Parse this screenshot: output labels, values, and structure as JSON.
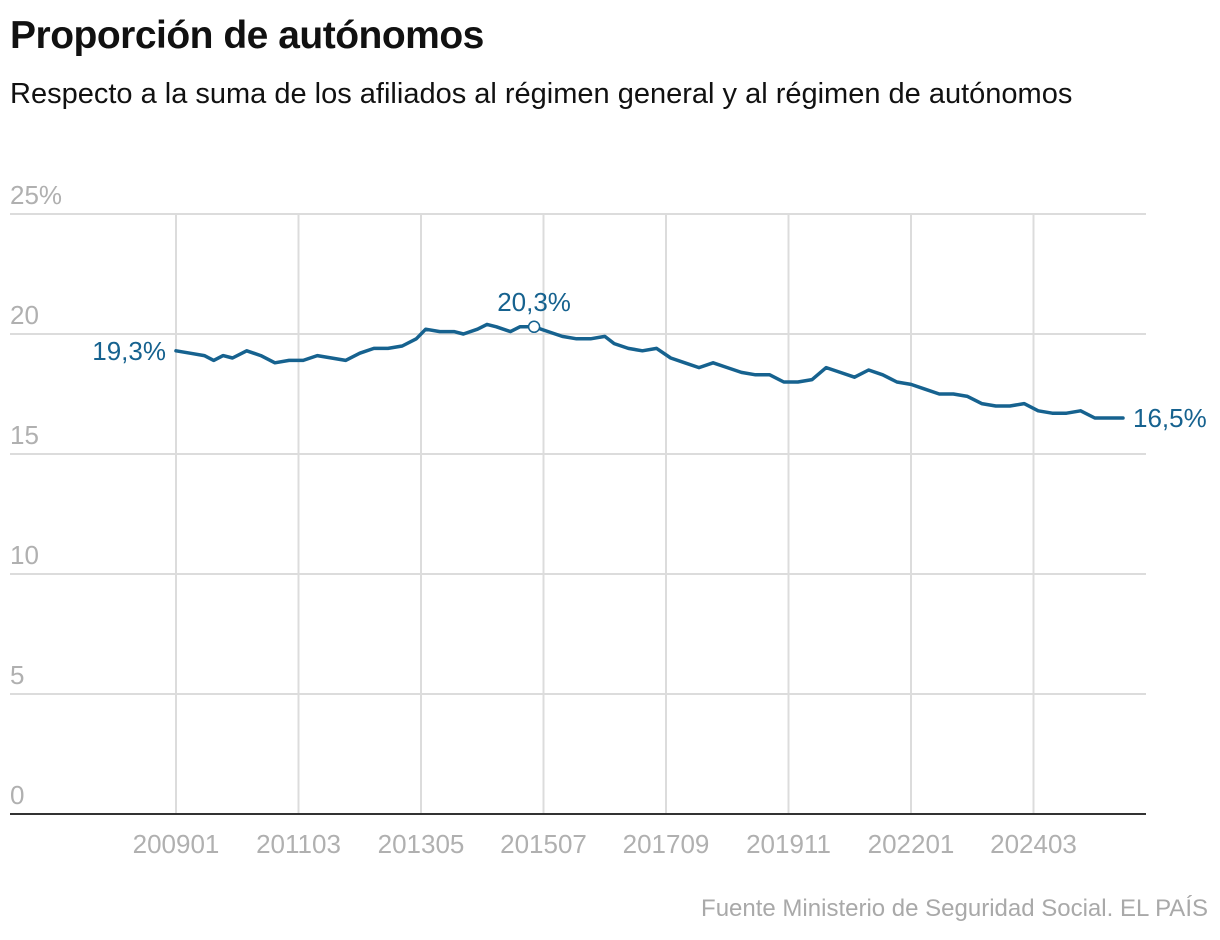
{
  "title": "Proporción de autónomos",
  "subtitle": "Respecto a la suma de los afiliados al régimen general y al régimen de autónomos",
  "source": "Fuente Ministerio de Seguridad Social. EL PAÍS",
  "colors": {
    "line": "#16628f",
    "grid": "#dcdcdc",
    "axis": "#333333",
    "tick_text": "#b0b0b0"
  },
  "chart_data": {
    "type": "line",
    "title": "Proporción de autónomos",
    "subtitle": "Respecto a la suma de los afiliados al régimen general y al régimen de autónomos",
    "xlabel": "",
    "ylabel": "",
    "ylim": [
      0,
      25
    ],
    "y_ticks": [
      {
        "value": 0,
        "label": "0"
      },
      {
        "value": 5,
        "label": "5"
      },
      {
        "value": 10,
        "label": "10"
      },
      {
        "value": 15,
        "label": "15"
      },
      {
        "value": 20,
        "label": "20"
      },
      {
        "value": 25,
        "label": "25%"
      }
    ],
    "x_ticks": [
      "200901",
      "201103",
      "201305",
      "201507",
      "201709",
      "201911",
      "202201",
      "202403"
    ],
    "x_range": [
      "2009-01",
      "2025-10"
    ],
    "grid": true,
    "series": [
      {
        "points": [
          [
            "2009-01",
            19.3
          ],
          [
            "2009-04",
            19.2
          ],
          [
            "2009-07",
            19.1
          ],
          [
            "2009-09",
            18.9
          ],
          [
            "2009-11",
            19.1
          ],
          [
            "2010-01",
            19.0
          ],
          [
            "2010-04",
            19.3
          ],
          [
            "2010-07",
            19.1
          ],
          [
            "2010-10",
            18.8
          ],
          [
            "2011-01",
            18.9
          ],
          [
            "2011-04",
            18.9
          ],
          [
            "2011-07",
            19.1
          ],
          [
            "2011-10",
            19.0
          ],
          [
            "2012-01",
            18.9
          ],
          [
            "2012-04",
            19.2
          ],
          [
            "2012-07",
            19.4
          ],
          [
            "2012-10",
            19.4
          ],
          [
            "2013-01",
            19.5
          ],
          [
            "2013-04",
            19.8
          ],
          [
            "2013-06",
            20.2
          ],
          [
            "2013-09",
            20.1
          ],
          [
            "2013-12",
            20.1
          ],
          [
            "2014-02",
            20.0
          ],
          [
            "2014-05",
            20.2
          ],
          [
            "2014-07",
            20.4
          ],
          [
            "2014-09",
            20.3
          ],
          [
            "2014-12",
            20.1
          ],
          [
            "2015-02",
            20.3
          ],
          [
            "2015-05",
            20.3
          ],
          [
            "2015-08",
            20.1
          ],
          [
            "2015-11",
            19.9
          ],
          [
            "2016-02",
            19.8
          ],
          [
            "2016-05",
            19.8
          ],
          [
            "2016-08",
            19.9
          ],
          [
            "2016-10",
            19.6
          ],
          [
            "2017-01",
            19.4
          ],
          [
            "2017-04",
            19.3
          ],
          [
            "2017-07",
            19.4
          ],
          [
            "2017-10",
            19.0
          ],
          [
            "2018-01",
            18.8
          ],
          [
            "2018-04",
            18.6
          ],
          [
            "2018-07",
            18.8
          ],
          [
            "2018-10",
            18.6
          ],
          [
            "2019-01",
            18.4
          ],
          [
            "2019-04",
            18.3
          ],
          [
            "2019-07",
            18.3
          ],
          [
            "2019-10",
            18.0
          ],
          [
            "2020-01",
            18.0
          ],
          [
            "2020-04",
            18.1
          ],
          [
            "2020-07",
            18.6
          ],
          [
            "2020-10",
            18.4
          ],
          [
            "2021-01",
            18.2
          ],
          [
            "2021-04",
            18.5
          ],
          [
            "2021-07",
            18.3
          ],
          [
            "2021-10",
            18.0
          ],
          [
            "2022-01",
            17.9
          ],
          [
            "2022-04",
            17.7
          ],
          [
            "2022-07",
            17.5
          ],
          [
            "2022-10",
            17.5
          ],
          [
            "2023-01",
            17.4
          ],
          [
            "2023-04",
            17.1
          ],
          [
            "2023-07",
            17.0
          ],
          [
            "2023-10",
            17.0
          ],
          [
            "2024-01",
            17.1
          ],
          [
            "2024-04",
            16.8
          ],
          [
            "2024-07",
            16.7
          ],
          [
            "2024-10",
            16.7
          ],
          [
            "2025-01",
            16.8
          ],
          [
            "2025-04",
            16.5
          ],
          [
            "2025-07",
            16.5
          ],
          [
            "2025-10",
            16.5
          ]
        ]
      }
    ],
    "annotations": [
      {
        "label": "19,3%",
        "x": "2009-01",
        "y": 19.3,
        "position": "left"
      },
      {
        "label": "20,3%",
        "x": "2015-05",
        "y": 20.3,
        "position": "above",
        "marker": "circle"
      },
      {
        "label": "16,5%",
        "x": "2025-10",
        "y": 16.5,
        "position": "right"
      }
    ]
  }
}
